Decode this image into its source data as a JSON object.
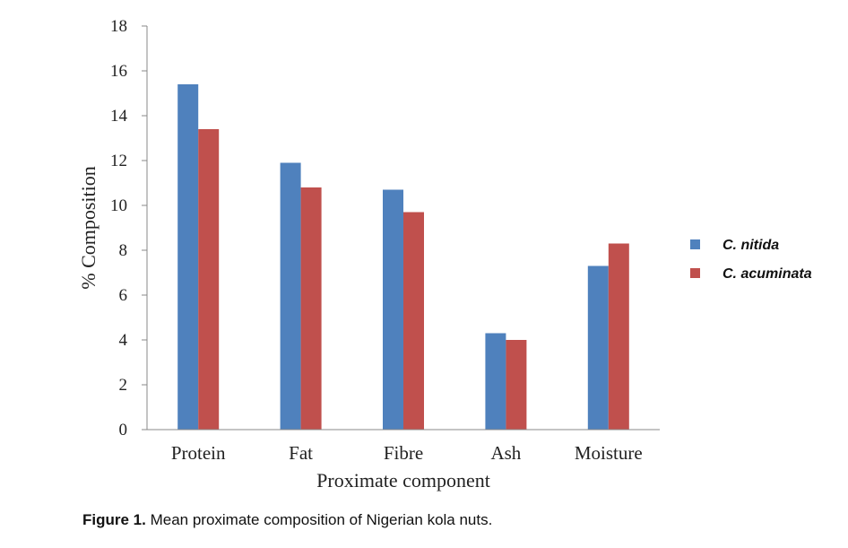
{
  "chart_data": {
    "type": "bar",
    "categories": [
      "Protein",
      "Fat",
      "Fibre",
      "Ash",
      "Moisture"
    ],
    "series": [
      {
        "name": "C. nitida",
        "values": [
          15.4,
          11.9,
          10.7,
          4.3,
          7.3
        ],
        "color": "#4f81bd"
      },
      {
        "name": "C. acuminata",
        "values": [
          13.4,
          10.8,
          9.7,
          4.0,
          8.3
        ],
        "color": "#c0504d"
      }
    ],
    "ylim": [
      0,
      18
    ],
    "yticks": [
      "0",
      "2",
      "4",
      "6",
      "8",
      "10",
      "12",
      "14",
      "16",
      "18"
    ],
    "xlabel": "Proximate component",
    "ylabel": "% Composition",
    "grid": false,
    "legend_position": "right"
  },
  "caption": {
    "label": "Figure 1.",
    "text": " Mean proximate composition of Nigerian kola nuts."
  }
}
